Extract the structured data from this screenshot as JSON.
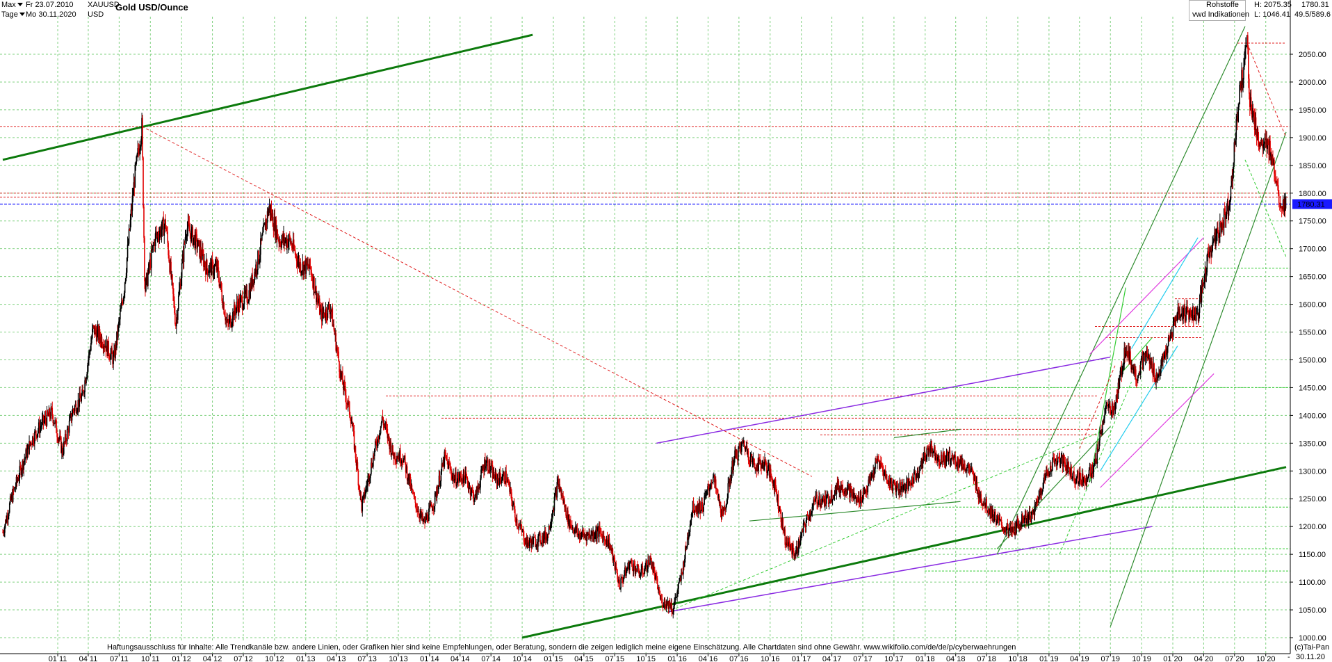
{
  "header": {
    "range_label": "Max",
    "interval_label": "Tage",
    "date_from": "Fr 23.07.2010",
    "date_to": "Mo 30.11.2020",
    "symbol": "XAUUSD",
    "currency": "USD",
    "title": "Gold USD/Ounce",
    "category": "Rohstoffe",
    "source": "vwd Indikationen",
    "high": "H: 2075.35",
    "low": "L: 1046.41",
    "last": "1780.31",
    "scale_info": "49.5/589.6"
  },
  "footer": {
    "disclaimer": "Haftungsausschluss für Inhalte: Alle Trendkanäle bzw. andere Linien, oder Grafiken hier sind keine Empfehlungen, oder Beratung, sondern die zeigen lediglich meine eigene Einschätzung. Alle Chartdaten sind ohne Gewähr.  www.wikifolio.com/de/de/p/cyberwaehrungen",
    "copyright": "(c)Tai-Pan",
    "end_date": "30.11.20",
    "dash": "-"
  },
  "colors": {
    "grid": "#7fd07f",
    "candle_up": "#000000",
    "candle_down": "#e00000",
    "trend_dark_green": "#0c7a0c",
    "trend_green": "#2e8b2e",
    "trend_light_green": "#33cc33",
    "trend_purple": "#8a2be2",
    "trend_magenta": "#e03ce0",
    "trend_cyan": "#22ccee",
    "level_red": "#e02020",
    "last_price_blue": "#1a1aff",
    "last_price_box": "#1a1aff"
  },
  "chart_data": {
    "type": "candlestick",
    "title": "Gold USD/Ounce",
    "ylim": [
      1000,
      2075
    ],
    "y_ticks": [
      1000,
      1050,
      1100,
      1150,
      1200,
      1250,
      1300,
      1350,
      1400,
      1450,
      1500,
      1550,
      1600,
      1650,
      1700,
      1750,
      1800,
      1850,
      1900,
      1950,
      2000,
      2050
    ],
    "x_ticks": [
      "01 11",
      "04 11",
      "07 11",
      "10 11",
      "01 12",
      "04 12",
      "07 12",
      "10 12",
      "01 13",
      "04 13",
      "07 13",
      "10 13",
      "01 14",
      "04 14",
      "07 14",
      "10 14",
      "01 15",
      "04 15",
      "07 15",
      "10 15",
      "01 16",
      "04 16",
      "07 16",
      "10 16",
      "01 17",
      "04 17",
      "07 17",
      "10 17",
      "01 18",
      "04 18",
      "07 18",
      "10 18",
      "01 19",
      "04 19",
      "07 19",
      "10 19",
      "01 20",
      "04 20",
      "07 20",
      "10 20"
    ],
    "x_range": [
      "2010-07-23",
      "2020-11-30"
    ],
    "grid": true,
    "last_price": 1780.31,
    "price_path_monthly": [
      [
        "2010-07",
        1170
      ],
      [
        "2010-08",
        1245
      ],
      [
        "2010-09",
        1305
      ],
      [
        "2010-10",
        1355
      ],
      [
        "2010-11",
        1385
      ],
      [
        "2010-12",
        1405
      ],
      [
        "2011-01",
        1335
      ],
      [
        "2011-02",
        1410
      ],
      [
        "2011-03",
        1435
      ],
      [
        "2011-04",
        1555
      ],
      [
        "2011-05",
        1535
      ],
      [
        "2011-06",
        1500
      ],
      [
        "2011-07",
        1625
      ],
      [
        "2011-08",
        1825
      ],
      [
        "2011-09",
        1625
      ],
      [
        "2011-10",
        1720
      ],
      [
        "2011-11",
        1745
      ],
      [
        "2011-12",
        1565
      ],
      [
        "2012-01",
        1740
      ],
      [
        "2012-02",
        1710
      ],
      [
        "2012-03",
        1665
      ],
      [
        "2012-04",
        1665
      ],
      [
        "2012-05",
        1560
      ],
      [
        "2012-06",
        1600
      ],
      [
        "2012-07",
        1615
      ],
      [
        "2012-08",
        1685
      ],
      [
        "2012-09",
        1775
      ],
      [
        "2012-10",
        1715
      ],
      [
        "2012-11",
        1715
      ],
      [
        "2012-12",
        1670
      ],
      [
        "2013-01",
        1665
      ],
      [
        "2013-02",
        1580
      ],
      [
        "2013-03",
        1595
      ],
      [
        "2013-04",
        1470
      ],
      [
        "2013-05",
        1395
      ],
      [
        "2013-06",
        1235
      ],
      [
        "2013-07",
        1315
      ],
      [
        "2013-08",
        1395
      ],
      [
        "2013-09",
        1330
      ],
      [
        "2013-10",
        1325
      ],
      [
        "2013-11",
        1250
      ],
      [
        "2013-12",
        1205
      ],
      [
        "2014-01",
        1245
      ],
      [
        "2014-02",
        1325
      ],
      [
        "2014-03",
        1285
      ],
      [
        "2014-04",
        1290
      ],
      [
        "2014-05",
        1250
      ],
      [
        "2014-06",
        1320
      ],
      [
        "2014-07",
        1285
      ],
      [
        "2014-08",
        1290
      ],
      [
        "2014-09",
        1210
      ],
      [
        "2014-10",
        1170
      ],
      [
        "2014-11",
        1175
      ],
      [
        "2014-12",
        1185
      ],
      [
        "2015-01",
        1280
      ],
      [
        "2015-02",
        1210
      ],
      [
        "2015-03",
        1185
      ],
      [
        "2015-04",
        1185
      ],
      [
        "2015-05",
        1190
      ],
      [
        "2015-06",
        1170
      ],
      [
        "2015-07",
        1095
      ],
      [
        "2015-08",
        1135
      ],
      [
        "2015-09",
        1115
      ],
      [
        "2015-10",
        1140
      ],
      [
        "2015-11",
        1065
      ],
      [
        "2015-12",
        1060
      ],
      [
        "2016-01",
        1115
      ],
      [
        "2016-02",
        1235
      ],
      [
        "2016-03",
        1235
      ],
      [
        "2016-04",
        1290
      ],
      [
        "2016-05",
        1215
      ],
      [
        "2016-06",
        1320
      ],
      [
        "2016-07",
        1350
      ],
      [
        "2016-08",
        1310
      ],
      [
        "2016-09",
        1315
      ],
      [
        "2016-10",
        1275
      ],
      [
        "2016-11",
        1175
      ],
      [
        "2016-12",
        1150
      ],
      [
        "2017-01",
        1210
      ],
      [
        "2017-02",
        1250
      ],
      [
        "2017-03",
        1245
      ],
      [
        "2017-04",
        1270
      ],
      [
        "2017-05",
        1270
      ],
      [
        "2017-06",
        1245
      ],
      [
        "2017-07",
        1270
      ],
      [
        "2017-08",
        1320
      ],
      [
        "2017-09",
        1280
      ],
      [
        "2017-10",
        1270
      ],
      [
        "2017-11",
        1275
      ],
      [
        "2017-12",
        1305
      ],
      [
        "2018-01",
        1345
      ],
      [
        "2018-02",
        1320
      ],
      [
        "2018-03",
        1325
      ],
      [
        "2018-04",
        1315
      ],
      [
        "2018-05",
        1300
      ],
      [
        "2018-06",
        1250
      ],
      [
        "2018-07",
        1225
      ],
      [
        "2018-08",
        1200
      ],
      [
        "2018-09",
        1190
      ],
      [
        "2018-10",
        1215
      ],
      [
        "2018-11",
        1220
      ],
      [
        "2018-12",
        1280
      ],
      [
        "2019-01",
        1320
      ],
      [
        "2019-02",
        1315
      ],
      [
        "2019-03",
        1290
      ],
      [
        "2019-04",
        1285
      ],
      [
        "2019-05",
        1305
      ],
      [
        "2019-06",
        1410
      ],
      [
        "2019-07",
        1415
      ],
      [
        "2019-08",
        1525
      ],
      [
        "2019-09",
        1470
      ],
      [
        "2019-10",
        1510
      ],
      [
        "2019-11",
        1465
      ],
      [
        "2019-12",
        1520
      ],
      [
        "2020-01",
        1585
      ],
      [
        "2020-02",
        1585
      ],
      [
        "2020-03",
        1580
      ],
      [
        "2020-04",
        1690
      ],
      [
        "2020-05",
        1730
      ],
      [
        "2020-06",
        1780
      ],
      [
        "2020-07",
        1975
      ],
      [
        "2020-08",
        1965
      ],
      [
        "2020-09",
        1885
      ],
      [
        "2020-10",
        1880
      ],
      [
        "2020-11",
        1780
      ]
    ],
    "price_extremes": [
      [
        "2011-09-06",
        1920
      ],
      [
        "2015-12-17",
        1046
      ],
      [
        "2020-08-07",
        2075
      ],
      [
        "2020-11-30",
        1780
      ]
    ],
    "horizontal_levels_red": [
      1920,
      2070,
      1800,
      1793,
      1435,
      1395,
      1375,
      1365,
      1560,
      1540,
      1610
    ],
    "horizontal_levels_green": [
      1450,
      1665,
      1235,
      1160,
      1120
    ],
    "last_price_line": 1780.31,
    "trendlines": [
      {
        "color": "trend_dark_green",
        "width": 3,
        "from": [
          "2010-07-23",
          1860
        ],
        "to": [
          "2014-11-01",
          2085
        ]
      },
      {
        "color": "trend_dark_green",
        "width": 3,
        "from": [
          "2014-10-01",
          1000
        ],
        "to": [
          "2020-11-30",
          1307
        ]
      },
      {
        "color": "trend_purple",
        "width": 1.5,
        "from": [
          "2015-12-01",
          1046
        ],
        "to": [
          "2019-11-01",
          1200
        ]
      },
      {
        "color": "trend_purple",
        "width": 1.5,
        "from": [
          "2015-11-01",
          1350
        ],
        "to": [
          "2019-07-01",
          1505
        ]
      },
      {
        "color": "trend_green",
        "width": 1.2,
        "from": [
          "2019-07-01",
          1020
        ],
        "to": [
          "2020-11-30",
          1910
        ]
      },
      {
        "color": "trend_green",
        "width": 1.2,
        "from": [
          "2018-08-01",
          1150
        ],
        "to": [
          "2020-08-01",
          2100
        ]
      },
      {
        "color": "trend_green",
        "width": 1.2,
        "from": [
          "2017-10-01",
          1360
        ],
        "to": [
          "2018-04-15",
          1375
        ]
      },
      {
        "color": "trend_green",
        "width": 1.2,
        "from": [
          "2016-08-01",
          1210
        ],
        "to": [
          "2018-04-15",
          1245
        ]
      },
      {
        "color": "trend_green",
        "width": 1.2,
        "from": [
          "2018-08-01",
          1160
        ],
        "to": [
          "2019-07-01",
          1380
        ]
      },
      {
        "color": "trend_magenta",
        "width": 1.2,
        "from": [
          "2019-05-01",
          1510
        ],
        "to": [
          "2020-04-01",
          1720
        ]
      },
      {
        "color": "trend_magenta",
        "width": 1.2,
        "from": [
          "2019-06-01",
          1270
        ],
        "to": [
          "2020-05-01",
          1475
        ]
      },
      {
        "color": "trend_cyan",
        "width": 1.2,
        "from": [
          "2019-06-01",
          1300
        ],
        "to": [
          "2020-01-15",
          1525
        ]
      },
      {
        "color": "trend_cyan",
        "width": 1.2,
        "from": [
          "2019-09-01",
          1520
        ],
        "to": [
          "2020-03-15",
          1720
        ]
      },
      {
        "color": "trend_light_green",
        "width": 1.2,
        "from": [
          "2019-05-01",
          1280
        ],
        "to": [
          "2019-08-15",
          1630
        ]
      },
      {
        "color": "trend_light_green",
        "width": 1.2,
        "from": [
          "2019-08-01",
          1475
        ],
        "to": [
          "2019-11-01",
          1540
        ]
      }
    ],
    "dashed_lines": [
      {
        "color": "level_red",
        "from": [
          "2011-09-06",
          1920
        ],
        "to": [
          "2017-02-01",
          1290
        ]
      },
      {
        "color": "level_red",
        "from": [
          "2020-08-07",
          2070
        ],
        "to": [
          "2020-11-30",
          1900
        ]
      },
      {
        "color": "trend_light_green",
        "from": [
          "2015-12-01",
          1046
        ],
        "to": [
          "2019-06-01",
          1370
        ]
      },
      {
        "color": "trend_light_green",
        "from": [
          "2020-08-01",
          1860
        ],
        "to": [
          "2020-11-30",
          1685
        ]
      },
      {
        "color": "trend_light_green",
        "from": [
          "2019-02-01",
          1150
        ],
        "to": [
          "2019-09-01",
          1460
        ]
      },
      {
        "color": "level_red",
        "from": [
          "2019-04-01",
          1340
        ],
        "to": [
          "2019-07-15",
          1490
        ]
      }
    ]
  }
}
